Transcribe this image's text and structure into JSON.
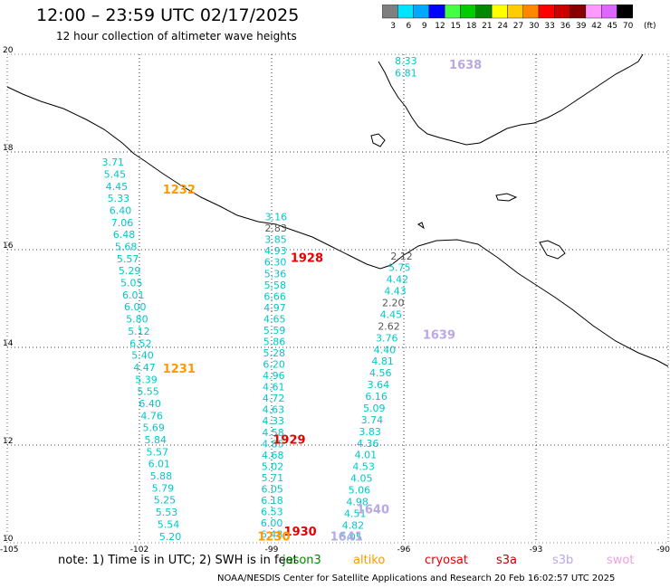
{
  "title": "12:00 – 23:59 UTC 02/17/2025",
  "subtitle": "12 hour collection of altimeter wave heights",
  "colors": {
    "jason": "#00c8c8",
    "altika": "#ff9900",
    "cryosat": "#e60000",
    "s3a": "#bb0000",
    "s3b": "#b8a8e6",
    "swot": "#f0a0dc",
    "gray": "#555555"
  },
  "legend": {
    "unit": "(ft)",
    "ticks": [
      "3",
      "6",
      "9",
      "12",
      "15",
      "18",
      "21",
      "24",
      "27",
      "30",
      "33",
      "36",
      "39",
      "42",
      "45",
      "70"
    ],
    "swatches": [
      "#7f7f7f",
      "#00e5ff",
      "#00a8ff",
      "#0000ff",
      "#44ff44",
      "#00cc00",
      "#008800",
      "#ffff00",
      "#ffcc00",
      "#ff8800",
      "#ff0000",
      "#cc0000",
      "#880000",
      "#ff99ff",
      "#dd66ff",
      "#000000"
    ]
  },
  "axes": {
    "lon_labels": [
      "-105",
      "-102",
      "-99",
      "-96",
      "-93",
      "-90"
    ],
    "lat_labels": [
      "20",
      "18",
      "16",
      "14",
      "12",
      "10"
    ]
  },
  "passes": [
    {
      "label": "1232",
      "color": "#ff9900",
      "lon": -101.1,
      "lat": 17.15
    },
    {
      "label": "1231",
      "color": "#ff9900",
      "lon": -101.1,
      "lat": 13.48
    },
    {
      "label": "1928",
      "color": "#e60000",
      "lon": -98.2,
      "lat": 15.75
    },
    {
      "label": "1929",
      "color": "#e60000",
      "lon": -98.6,
      "lat": 12.03
    },
    {
      "label": "1930",
      "color": "#e60000",
      "lon": -98.35,
      "lat": 10.15
    },
    {
      "label": "1230",
      "color": "#ff9900",
      "lon": -98.95,
      "lat": 10.05
    },
    {
      "label": "1638",
      "color": "#b8a8e6",
      "lon": -94.6,
      "lat": 19.7
    },
    {
      "label": "1639",
      "color": "#b8a8e6",
      "lon": -95.2,
      "lat": 14.18
    },
    {
      "label": "1640",
      "color": "#b8a8e6",
      "lon": -96.7,
      "lat": 10.6
    },
    {
      "label": "1641",
      "color": "#b8a8e6",
      "lon": -97.3,
      "lat": 10.05
    }
  ],
  "tracks": [
    {
      "name": "track-a",
      "color": "#00c8c8",
      "lon_start": -102.6,
      "lon_end": -101.3,
      "lat_start": 17.72,
      "lat_end": 10.06,
      "values": [
        "3.71",
        "5.45",
        "4.45",
        "5.33",
        "6.40",
        "7.06",
        "6.48",
        "5.68",
        "5.57",
        "5.29",
        "5.05",
        "6.01",
        "6.00",
        "5.80",
        "5.12",
        "6.52",
        "5.40",
        "4.47",
        "5.39",
        "5.55",
        "6.40",
        "4.76",
        "5.69",
        "5.84",
        "5.57",
        "6.01",
        "5.88",
        "5.79",
        "5.25",
        "5.53",
        "5.54",
        "5.20"
      ]
    },
    {
      "name": "track-b",
      "color": "#00c8c8",
      "lon_start": -98.9,
      "lon_end": -99.0,
      "lat_start": 16.6,
      "lat_end": 10.1,
      "values": [
        "3.16",
        "2.83",
        "3.85",
        "4.93",
        "6.30",
        "5.36",
        "5.58",
        "6.66",
        "4.97",
        "4.65",
        "5.59",
        "5.86",
        "5.28",
        "6.20",
        "4.96",
        "4.61",
        "4.72",
        "4.63",
        "4.33",
        "4.58",
        "4.85",
        "4.68",
        "5.02",
        "5.71",
        "6.05",
        "6.18",
        "6.53",
        "6.00",
        "6.48"
      ]
    },
    {
      "name": "track-c",
      "color": "#00c8c8",
      "lon_start": -96.05,
      "lon_end": -97.2,
      "lat_start": 15.8,
      "lat_end": 10.05,
      "values": [
        "2.12",
        "5.75",
        "4.42",
        "4.43",
        "2.20",
        "4.45",
        "2.62",
        "3.76",
        "4.40",
        "4.81",
        "4.56",
        "3.64",
        "6.16",
        "5.09",
        "3.74",
        "3.83",
        "4.36",
        "4.01",
        "4.53",
        "4.05",
        "5.06",
        "4.98",
        "4.51",
        "4.82",
        "5.05"
      ]
    },
    {
      "name": "track-d",
      "color": "#00c8c8",
      "lon_start": -95.95,
      "lon_end": -95.95,
      "lat_start": 19.8,
      "lat_end": 19.55,
      "values": [
        "8.33",
        "6.81"
      ]
    }
  ],
  "gray_values": [
    "2.83",
    "2.12",
    "2.20",
    "2.62"
  ],
  "footer": {
    "note_prefix": "note:  1) Time is in UTC;  2) SWH is in feet",
    "sat_jason": "jason3",
    "sat_altika": "altiko",
    "sat_cryosat": "cryosat",
    "sat_s3a": "s3a",
    "sat_s3b": "s3b",
    "sat_swot": "swot",
    "credit": "NOAA/NESDIS Center for Satellite Applications and Research     20 Feb 16:02:57 UTC 2025"
  }
}
